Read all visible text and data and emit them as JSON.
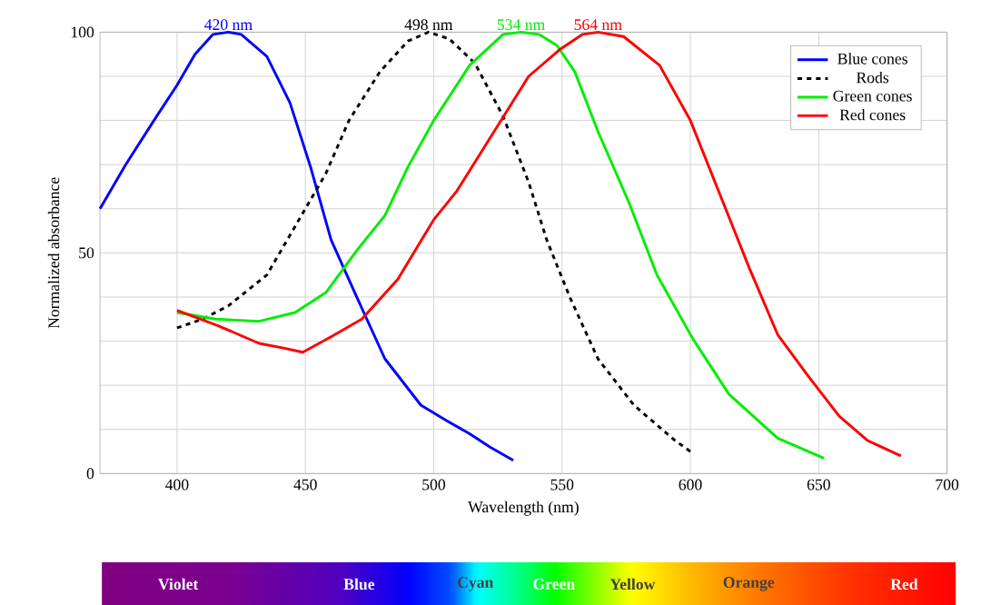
{
  "chart_data": {
    "type": "line",
    "xlabel": "Wavelength (nm)",
    "ylabel": "Normalized absorbance",
    "xlim": [
      370,
      700
    ],
    "xticks": [
      400,
      450,
      500,
      550,
      600,
      650,
      700
    ],
    "ylim": [
      0,
      100
    ],
    "yticks": [
      0,
      {
        "value": 10,
        "label": null
      },
      {
        "value": 20,
        "label": null
      },
      {
        "value": 30,
        "label": null
      },
      {
        "value": 40,
        "label": null
      },
      50,
      {
        "value": 60,
        "label": null
      },
      {
        "value": 70,
        "label": null
      },
      {
        "value": 80,
        "label": null
      },
      {
        "value": 90,
        "label": null
      },
      100
    ],
    "grid": true,
    "legend": "top right",
    "series": [
      {
        "name": "Blue cones",
        "color": "#0000ff",
        "line_style": "solid",
        "x": [
          370,
          380,
          391,
          400,
          407,
          414,
          420,
          425,
          435,
          444,
          452,
          460,
          470,
          481,
          495,
          505,
          514,
          522,
          531
        ],
        "values": [
          60,
          70,
          80,
          88,
          95,
          99.5,
          100,
          99.5,
          94.5,
          84,
          69.5,
          53,
          40,
          26,
          15.5,
          12,
          9,
          6,
          3
        ]
      },
      {
        "name": "Rods",
        "color": "#000000",
        "line_style": "dotted",
        "x": [
          400,
          410,
          420,
          435,
          446,
          458,
          467,
          479,
          490,
          498,
          506,
          516,
          527,
          537,
          544,
          553,
          564,
          578,
          594,
          600
        ],
        "values": [
          33,
          35,
          38,
          45,
          56,
          68,
          80,
          91,
          98,
          100,
          98.5,
          93,
          81,
          66,
          53,
          40,
          26,
          15.5,
          7.5,
          5
        ]
      },
      {
        "name": "Green cones",
        "color": "#00ee00",
        "line_style": "solid",
        "x": [
          400,
          415,
          432,
          446,
          458,
          470,
          481,
          490,
          500,
          514,
          527,
          534,
          541,
          548,
          555,
          564,
          576,
          587,
          601,
          615,
          634,
          652
        ],
        "values": [
          36.5,
          35,
          34.5,
          36.5,
          41,
          50.5,
          58.5,
          69.5,
          80,
          92.5,
          99.5,
          100,
          99.5,
          97,
          91,
          77.5,
          61.5,
          45,
          30.5,
          18,
          8,
          3.5
        ]
      },
      {
        "name": "Red cones",
        "color": "#ff0000",
        "line_style": "solid",
        "x": [
          400,
          416,
          432,
          441,
          449,
          460,
          472,
          486,
          500,
          509,
          523,
          537,
          549,
          558,
          564,
          574,
          588,
          600,
          611,
          623,
          634,
          646,
          658,
          669,
          682
        ],
        "values": [
          37,
          33.5,
          29.5,
          28.5,
          27.5,
          31,
          35,
          44,
          57.5,
          64,
          77,
          90,
          96,
          99.5,
          100,
          99,
          92.5,
          80,
          64,
          46.5,
          31.5,
          22,
          13,
          7.5,
          4
        ]
      }
    ],
    "annotations": [
      {
        "text": "420 nm",
        "x": 420,
        "y": 100
      },
      {
        "text": "498 nm",
        "x": 498,
        "y": 100
      },
      {
        "text": "534 nm",
        "x": 534,
        "y": 100
      },
      {
        "text": "564 nm",
        "x": 564,
        "y": 100
      },
      "Violet",
      "Blue",
      "Cyan",
      "Green",
      "Yellow",
      "Orange",
      "Red"
    ]
  }
}
